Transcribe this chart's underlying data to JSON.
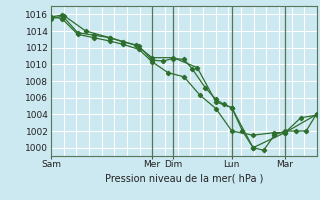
{
  "title": "Pression niveau de la mer( hPa )",
  "bg_color": "#cce8f0",
  "grid_color": "#ffffff",
  "line_color": "#2d6e2d",
  "ylim": [
    999,
    1017
  ],
  "yticks": [
    1000,
    1002,
    1004,
    1006,
    1008,
    1010,
    1012,
    1014,
    1016
  ],
  "xlim": [
    0,
    1
  ],
  "xtick_labels": [
    "Sam",
    "Mer",
    "Dim",
    "Lun",
    "Mar"
  ],
  "xtick_pos": [
    0.0,
    0.38,
    0.46,
    0.68,
    0.88
  ],
  "vlines": [
    0.38,
    0.46,
    0.68,
    0.88
  ],
  "line1_x": [
    0.0,
    0.04,
    0.1,
    0.16,
    0.22,
    0.27,
    0.33,
    0.38,
    0.42,
    0.46,
    0.5,
    0.53,
    0.58,
    0.62,
    0.65,
    0.68,
    0.72,
    0.76,
    0.8,
    0.84,
    0.88,
    0.92,
    0.96,
    1.0
  ],
  "line1_y": [
    1015.7,
    1015.9,
    1013.8,
    1013.5,
    1013.2,
    1012.7,
    1012.2,
    1010.5,
    1010.4,
    1010.7,
    1010.6,
    1009.5,
    1007.2,
    1005.8,
    1005.2,
    1004.8,
    1002.0,
    1000.0,
    999.7,
    1001.5,
    1002.0,
    1002.0,
    1002.0,
    1004.1
  ],
  "line2_x": [
    0.0,
    0.04,
    0.1,
    0.16,
    0.22,
    0.27,
    0.33,
    0.38,
    0.44,
    0.5,
    0.56,
    0.62,
    0.68,
    0.76,
    0.84,
    0.88,
    0.94,
    1.0
  ],
  "line2_y": [
    1015.7,
    1015.5,
    1013.6,
    1013.2,
    1012.8,
    1012.4,
    1011.8,
    1010.3,
    1009.0,
    1008.5,
    1006.3,
    1004.7,
    1002.0,
    1001.5,
    1001.8,
    1001.8,
    1003.6,
    1003.9
  ],
  "line3_x": [
    0.0,
    0.05,
    0.13,
    0.22,
    0.32,
    0.38,
    0.46,
    0.55,
    0.62,
    0.68,
    0.76,
    0.88,
    1.0
  ],
  "line3_y": [
    1015.5,
    1015.8,
    1014.0,
    1013.2,
    1012.3,
    1010.8,
    1010.8,
    1009.6,
    1005.5,
    1004.8,
    1000.0,
    1001.8,
    1004.0
  ]
}
